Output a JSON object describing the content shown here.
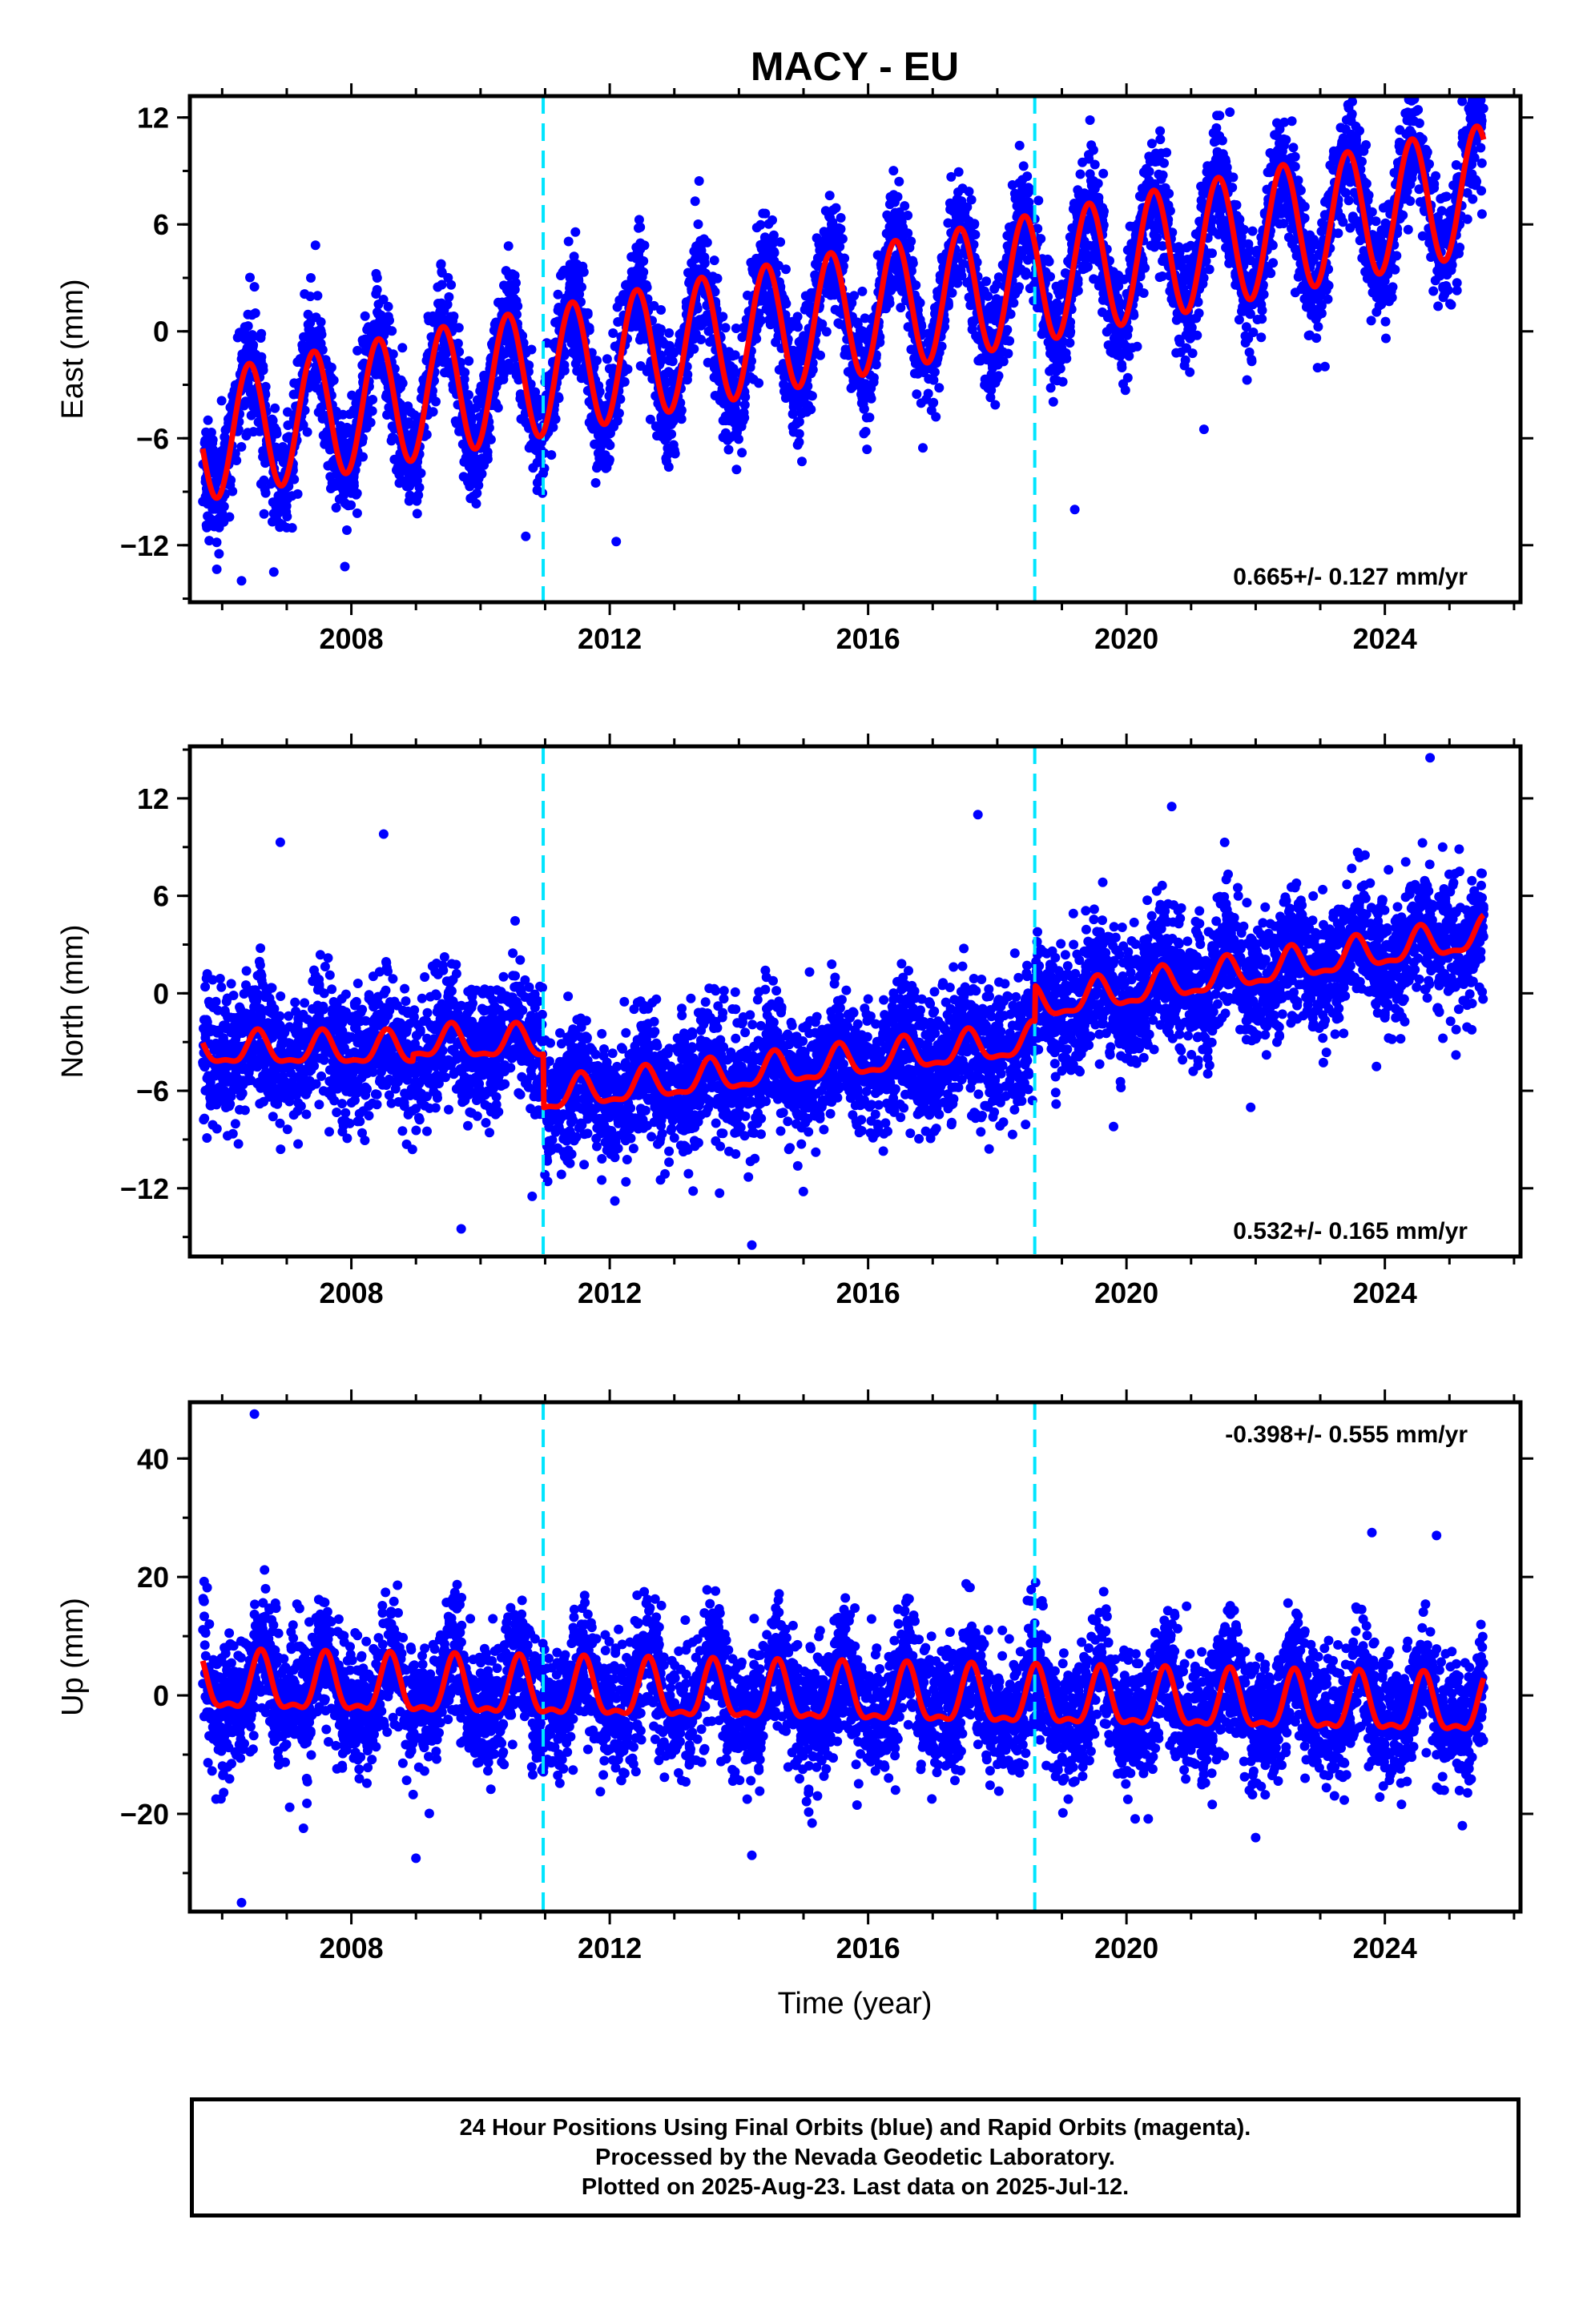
{
  "title": "MACY - EU",
  "colors": {
    "final_orbits": "#0000ff",
    "model_fit": "#ff0000",
    "offset_markers": "#00e5ff",
    "axes": "#000000"
  },
  "offset_markers_year": [
    2010.97,
    2018.58
  ],
  "xaxis": {
    "label": "Time (year)",
    "range": [
      2005.5,
      2026.1
    ],
    "ticks": [
      2008,
      2012,
      2016,
      2020,
      2024
    ],
    "tick_labels": [
      "2008",
      "2012",
      "2016",
      "2020",
      "2024"
    ]
  },
  "chart_data": [
    {
      "type": "scatter",
      "name": "east",
      "ylabel": "East (mm)",
      "rate_label": "0.665+/- 0.127 mm/yr",
      "rate_position": "bottom-right",
      "ylim": [
        -15.2,
        13.2
      ],
      "yticks": [
        -12,
        -6,
        0,
        6,
        12
      ],
      "ytick_labels": [
        "−12",
        "−6",
        "0",
        "6",
        "12"
      ],
      "data_start": 2005.7,
      "data_end": 2025.53,
      "model": {
        "intercept": -5.7,
        "ref_year": 2006.0,
        "rate": 0.69,
        "rate_breaks": [
          {
            "year": 2018.58,
            "rate": 0.72
          }
        ],
        "offsets": [
          {
            "year": 2010.97,
            "value": 0.0
          },
          {
            "year": 2018.58,
            "value": 0.0
          }
        ],
        "amplitude": 3.6,
        "peak_year_fraction": 0.42,
        "semiannual": 0.0
      },
      "scatter_sigma": 1.6,
      "scatter_points_per_year": 300,
      "outliers": [
        [
          2006.3,
          -14.0
        ],
        [
          2006.8,
          -13.5
        ],
        [
          2007.9,
          -13.2
        ],
        [
          2010.7,
          -11.5
        ],
        [
          2012.1,
          -11.8
        ],
        [
          2019.2,
          -10.0
        ],
        [
          2021.6,
          12.3
        ],
        [
          2021.2,
          -5.5
        ],
        [
          2025.3,
          12.5
        ],
        [
          2006.5,
          2.5
        ],
        [
          2008.4,
          3.0
        ]
      ]
    },
    {
      "type": "scatter",
      "name": "north",
      "ylabel": "North (mm)",
      "rate_label": "0.532+/- 0.165 mm/yr",
      "rate_position": "bottom-right",
      "ylim": [
        -16.2,
        15.2
      ],
      "yticks": [
        -12,
        -6,
        0,
        6,
        12
      ],
      "ytick_labels": [
        "−12",
        "−6",
        "0",
        "6",
        "12"
      ],
      "data_start": 2005.7,
      "data_end": 2025.53,
      "model": {
        "intercept": -3.5,
        "ref_year": 2006.0,
        "rate": 0.0,
        "rate_breaks": [
          {
            "year": 2009.0,
            "rate": 0.0
          },
          {
            "year": 2010.97,
            "rate": 0.45
          },
          {
            "year": 2018.58,
            "rate": 0.62
          }
        ],
        "offsets": [
          {
            "year": 2008.95,
            "value": 0.4
          },
          {
            "year": 2010.97,
            "value": -3.3
          },
          {
            "year": 2018.58,
            "value": 2.2
          }
        ],
        "amplitude": 0.95,
        "peak_year_fraction": 0.55,
        "semiannual": 0.35
      },
      "scatter_sigma": 2.0,
      "scatter_points_per_year": 300,
      "outliers": [
        [
          2006.9,
          9.3
        ],
        [
          2008.5,
          9.8
        ],
        [
          2009.7,
          -14.5
        ],
        [
          2010.8,
          -12.5
        ],
        [
          2014.2,
          -15.5
        ],
        [
          2013.7,
          -12.3
        ],
        [
          2017.7,
          11.0
        ],
        [
          2020.7,
          11.5
        ],
        [
          2024.7,
          14.5
        ],
        [
          2025.1,
          -3.8
        ],
        [
          2019.8,
          -8.2
        ]
      ]
    },
    {
      "type": "scatter",
      "name": "up",
      "ylabel": "Up (mm)",
      "rate_label": "-0.398+/- 0.555 mm/yr",
      "rate_position": "top-right",
      "ylim": [
        -36.5,
        49.5
      ],
      "yticks": [
        -20,
        0,
        20,
        40
      ],
      "ytick_labels": [
        "−20",
        "0",
        "20",
        "40"
      ],
      "data_start": 2005.7,
      "data_end": 2025.53,
      "model": {
        "intercept": 1.5,
        "ref_year": 2006.0,
        "rate": -0.2,
        "rate_breaks": [],
        "offsets": [],
        "amplitude": 4.6,
        "peak_year_fraction": 0.6,
        "semiannual": 1.8
      },
      "scatter_sigma": 5.2,
      "scatter_points_per_year": 300,
      "outliers": [
        [
          2006.5,
          47.5
        ],
        [
          2006.3,
          -35.0
        ],
        [
          2009.0,
          -27.5
        ],
        [
          2014.2,
          -27.0
        ],
        [
          2023.8,
          27.5
        ],
        [
          2024.8,
          27.0
        ],
        [
          2022.0,
          -24.0
        ],
        [
          2025.2,
          -22.0
        ]
      ]
    }
  ],
  "footer": {
    "line1": "24 Hour Positions Using Final Orbits (blue) and Rapid Orbits (magenta).",
    "line2": "Processed by the Nevada Geodetic Laboratory.",
    "line3": "Plotted on 2025-Aug-23. Last data on 2025-Jul-12."
  }
}
